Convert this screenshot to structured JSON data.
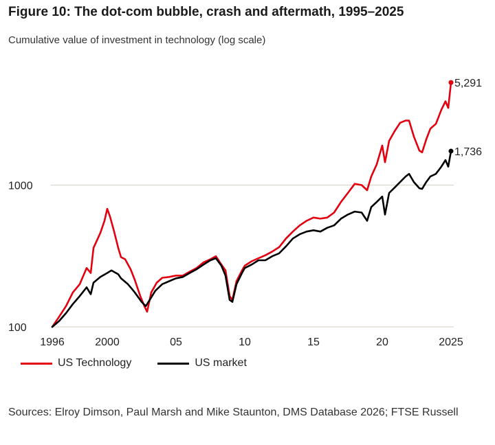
{
  "figure": {
    "title": "Figure 10: The dot-com bubble, crash and aftermath, 1995–2025",
    "subtitle": "Cumulative value of investment in technology (log scale)",
    "source": "Sources: Elroy Dimson, Paul Marsh and Mike Staunton, DMS Database 2026; FTSE Russell"
  },
  "chart_data": {
    "type": "line",
    "title": "Figure 10: The dot-com bubble, crash and aftermath, 1995–2025",
    "subtitle": "Cumulative value of investment in technology (log scale)",
    "xlabel": "",
    "ylabel": "",
    "y_scale": "log",
    "ylim": [
      100,
      7000
    ],
    "xlim": [
      1995.9,
      2025.2
    ],
    "grid": "horizontal at y tick values",
    "legend_position": "bottom-left",
    "x_ticks": [
      {
        "value": 1996,
        "label": "1996"
      },
      {
        "value": 2000,
        "label": "2000"
      },
      {
        "value": 2005,
        "label": "05"
      },
      {
        "value": 2010,
        "label": "10"
      },
      {
        "value": 2015,
        "label": "15"
      },
      {
        "value": 2020,
        "label": "20"
      },
      {
        "value": 2025,
        "label": "2025"
      }
    ],
    "y_ticks": [
      {
        "value": 100,
        "label": "100"
      },
      {
        "value": 1000,
        "label": "1000"
      }
    ],
    "series": [
      {
        "name": "US Technology",
        "color": "#e3000f",
        "end_label": "5,291",
        "x": [
          1996.0,
          1996.5,
          1997.0,
          1997.5,
          1998.0,
          1998.5,
          1998.8,
          1999.0,
          1999.5,
          1999.8,
          2000.0,
          2000.2,
          2000.5,
          2000.8,
          2001.0,
          2001.3,
          2001.7,
          2002.0,
          2002.4,
          2002.7,
          2002.9,
          2003.2,
          2003.6,
          2004.0,
          2004.5,
          2005.0,
          2005.5,
          2006.0,
          2006.5,
          2007.0,
          2007.5,
          2007.9,
          2008.3,
          2008.6,
          2008.9,
          2009.1,
          2009.4,
          2009.8,
          2010.0,
          2010.5,
          2011.0,
          2011.5,
          2012.0,
          2012.5,
          2013.0,
          2013.5,
          2014.0,
          2014.5,
          2015.0,
          2015.5,
          2016.0,
          2016.5,
          2017.0,
          2017.5,
          2018.0,
          2018.5,
          2018.9,
          2019.2,
          2019.6,
          2020.0,
          2020.2,
          2020.5,
          2020.9,
          2021.3,
          2021.7,
          2021.95,
          2022.3,
          2022.7,
          2022.9,
          2023.2,
          2023.5,
          2023.9,
          2024.3,
          2024.6,
          2024.8,
          2025.0
        ],
        "y": [
          100,
          118,
          140,
          175,
          200,
          260,
          240,
          360,
          460,
          560,
          680,
          600,
          470,
          360,
          310,
          300,
          255,
          215,
          165,
          140,
          128,
          175,
          205,
          222,
          225,
          230,
          230,
          245,
          260,
          285,
          300,
          315,
          275,
          250,
          165,
          155,
          210,
          250,
          270,
          290,
          305,
          320,
          340,
          365,
          420,
          470,
          520,
          560,
          590,
          580,
          590,
          640,
          760,
          880,
          1020,
          1000,
          920,
          1150,
          1400,
          1900,
          1450,
          2050,
          2400,
          2750,
          2850,
          2850,
          2200,
          1750,
          1700,
          2100,
          2500,
          2700,
          3400,
          3900,
          3500,
          5291
        ]
      },
      {
        "name": "US market",
        "color": "#000000",
        "end_label": "1,736",
        "x": [
          1996.0,
          1996.5,
          1997.0,
          1997.5,
          1998.0,
          1998.5,
          1998.8,
          1999.0,
          1999.5,
          2000.0,
          2000.3,
          2000.8,
          2001.0,
          2001.5,
          2001.8,
          2002.0,
          2002.5,
          2002.8,
          2003.0,
          2003.5,
          2004.0,
          2004.5,
          2005.0,
          2005.5,
          2006.0,
          2006.5,
          2007.0,
          2007.5,
          2007.9,
          2008.3,
          2008.6,
          2008.9,
          2009.1,
          2009.4,
          2009.8,
          2010.0,
          2010.5,
          2011.0,
          2011.5,
          2012.0,
          2012.5,
          2013.0,
          2013.5,
          2014.0,
          2014.5,
          2015.0,
          2015.5,
          2016.0,
          2016.5,
          2017.0,
          2017.5,
          2018.0,
          2018.5,
          2018.9,
          2019.2,
          2019.6,
          2020.0,
          2020.2,
          2020.5,
          2020.9,
          2021.3,
          2021.7,
          2021.95,
          2022.3,
          2022.7,
          2022.9,
          2023.2,
          2023.5,
          2023.9,
          2024.3,
          2024.6,
          2024.8,
          2025.0
        ],
        "y": [
          100,
          110,
          125,
          145,
          165,
          190,
          170,
          205,
          225,
          240,
          250,
          235,
          220,
          200,
          185,
          175,
          150,
          140,
          150,
          180,
          200,
          210,
          220,
          225,
          240,
          255,
          275,
          295,
          305,
          270,
          230,
          155,
          150,
          200,
          240,
          260,
          275,
          295,
          295,
          315,
          330,
          370,
          420,
          450,
          470,
          480,
          470,
          500,
          520,
          580,
          620,
          650,
          640,
          560,
          700,
          760,
          830,
          620,
          880,
          960,
          1050,
          1150,
          1200,
          1050,
          950,
          940,
          1050,
          1150,
          1200,
          1350,
          1500,
          1350,
          1736
        ]
      }
    ]
  }
}
